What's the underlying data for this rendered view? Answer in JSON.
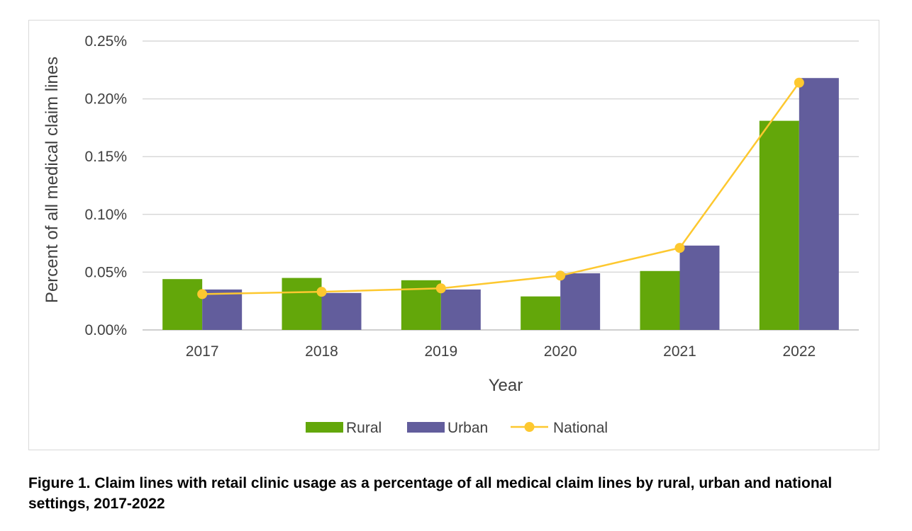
{
  "chart_data": {
    "type": "bar",
    "categories": [
      "2017",
      "2018",
      "2019",
      "2020",
      "2021",
      "2022"
    ],
    "series": [
      {
        "name": "Rural",
        "kind": "bar",
        "color": "#63a70a",
        "values": [
          0.044,
          0.045,
          0.043,
          0.029,
          0.051,
          0.181
        ]
      },
      {
        "name": "Urban",
        "kind": "bar",
        "color": "#625d9c",
        "values": [
          0.035,
          0.032,
          0.035,
          0.049,
          0.073,
          0.218
        ]
      },
      {
        "name": "National",
        "kind": "line",
        "color": "#fdc82f",
        "values": [
          0.031,
          0.033,
          0.036,
          0.047,
          0.071,
          0.214
        ]
      }
    ],
    "yticks": [
      0,
      0.05,
      0.1,
      0.15,
      0.2,
      0.25
    ],
    "ytick_labels": [
      "0.00%",
      "0.05%",
      "0.10%",
      "0.15%",
      "0.20%",
      "0.25%"
    ],
    "ylim": [
      0,
      0.25
    ],
    "xlabel": "Year",
    "ylabel": "Percent of all medical claim lines",
    "grid": true,
    "legend_position": "bottom-center",
    "value_unit": "percent"
  },
  "caption": "Figure 1. Claim lines with retail clinic usage as a percentage of all medical claim lines by rural, urban and national settings, 2017-2022",
  "colors": {
    "gridline": "#d9d9d9",
    "text": "#404040",
    "frame": "#d9d9d9"
  }
}
